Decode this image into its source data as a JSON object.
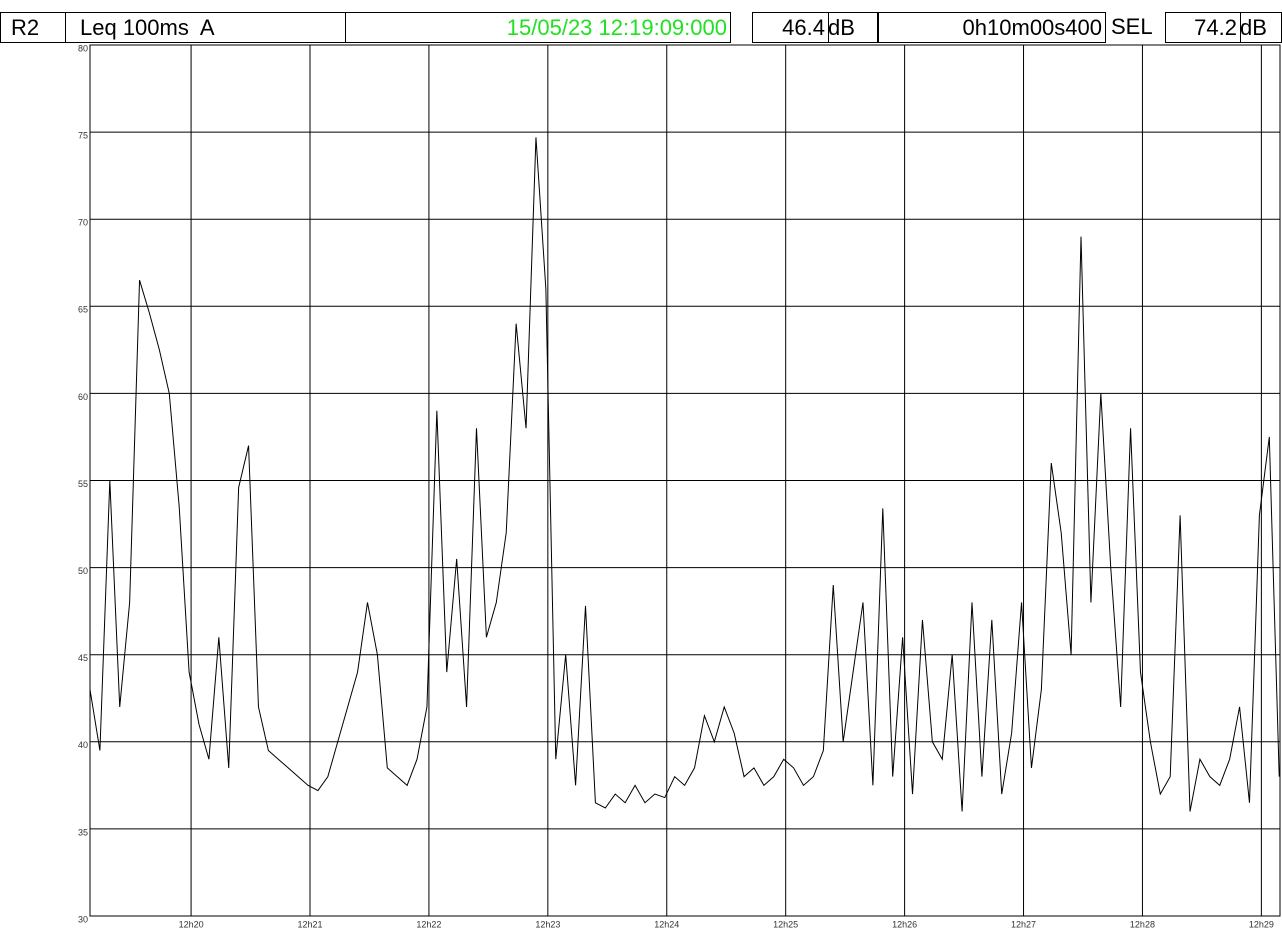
{
  "header": {
    "channel": "R2",
    "measure": "Leq 100ms  A",
    "timestamp": "15/05/23 12:19:09:000",
    "level_value": "46.4",
    "level_unit": "dB",
    "duration": "0h10m00s400",
    "sel_label": "SEL",
    "sel_value": "74.2",
    "sel_unit": "dB"
  },
  "chart_data": {
    "type": "line",
    "color": "#000000",
    "grid": true,
    "x": [
      1149,
      1154,
      1159,
      1164,
      1169,
      1174,
      1179,
      1184,
      1189,
      1194,
      1199,
      1204,
      1209,
      1214,
      1219,
      1224,
      1229,
      1234,
      1239,
      1244,
      1249,
      1254,
      1259,
      1264,
      1269,
      1274,
      1279,
      1284,
      1289,
      1294,
      1299,
      1304,
      1309,
      1314,
      1319,
      1324,
      1329,
      1334,
      1339,
      1344,
      1349,
      1354,
      1359,
      1364,
      1369,
      1374,
      1379,
      1384,
      1389,
      1394,
      1399,
      1404,
      1409,
      1414,
      1419,
      1424,
      1429,
      1434,
      1439,
      1444,
      1449,
      1454,
      1459,
      1464,
      1469,
      1474,
      1479,
      1484,
      1489,
      1494,
      1499,
      1504,
      1509,
      1514,
      1519,
      1524,
      1529,
      1534,
      1539,
      1544,
      1549,
      1554,
      1559,
      1564,
      1569,
      1574,
      1579,
      1584,
      1589,
      1594,
      1599,
      1604,
      1609,
      1614,
      1619,
      1624,
      1629,
      1634,
      1639,
      1644,
      1649,
      1654,
      1659,
      1664,
      1669,
      1674,
      1679,
      1684,
      1689,
      1694,
      1699,
      1704,
      1709,
      1714,
      1719,
      1724,
      1729,
      1734,
      1739,
      1744,
      1749
    ],
    "values": [
      43,
      39.5,
      55,
      42,
      48,
      66.5,
      64.6,
      62.5,
      60,
      53.5,
      44,
      41,
      39,
      46,
      38.5,
      54.6,
      57,
      42,
      39.5,
      39,
      38.5,
      38,
      37.5,
      37.2,
      38,
      40,
      42,
      44,
      48,
      45,
      38.5,
      38,
      37.5,
      39,
      42,
      59,
      44,
      50.5,
      42,
      58,
      46,
      48,
      52,
      64,
      58,
      74.7,
      66,
      39,
      45,
      37.5,
      47.8,
      36.5,
      36.2,
      37,
      36.5,
      37.5,
      36.5,
      37,
      36.8,
      38,
      37.5,
      38.5,
      41.5,
      40,
      42,
      40.5,
      38,
      38.5,
      37.5,
      38,
      39,
      38.5,
      37.5,
      38,
      39.5,
      49,
      40,
      44,
      48,
      37.5,
      53.4,
      38,
      46,
      37,
      47,
      40,
      39,
      45,
      36,
      48,
      38,
      47,
      37,
      40.5,
      48,
      38.5,
      43,
      56,
      52,
      45,
      69,
      48,
      60,
      50,
      42,
      58,
      44,
      40,
      37,
      38,
      53,
      36,
      39,
      38,
      37.5,
      39,
      42,
      36.5,
      53,
      57.5,
      38
    ],
    "xlim": [
      1149,
      1749.4
    ],
    "xticks": [
      {
        "value": 1200,
        "label": "12h20"
      },
      {
        "value": 1260,
        "label": "12h21"
      },
      {
        "value": 1320,
        "label": "12h22"
      },
      {
        "value": 1380,
        "label": "12h23"
      },
      {
        "value": 1440,
        "label": "12h24"
      },
      {
        "value": 1500,
        "label": "12h25"
      },
      {
        "value": 1560,
        "label": "12h26"
      },
      {
        "value": 1620,
        "label": "12h27"
      },
      {
        "value": 1680,
        "label": "12h28"
      },
      {
        "value": 1740,
        "label": "12h29"
      }
    ],
    "ylim": [
      30,
      80
    ],
    "yticks": [
      30,
      35,
      40,
      45,
      50,
      55,
      60,
      65,
      70,
      75,
      80
    ]
  }
}
